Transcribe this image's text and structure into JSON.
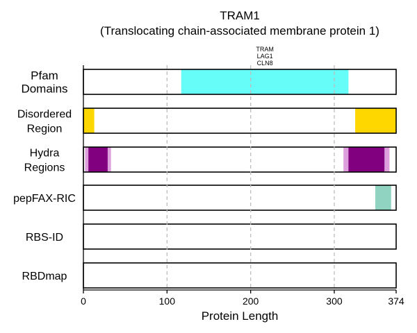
{
  "chart_data": {
    "type": "bar",
    "title": "TRAM1",
    "subtitle": "(Translocating chain-associated membrane protein 1)",
    "xlabel": "Protein Length",
    "protein_length": 374,
    "xlim": [
      0,
      374
    ],
    "x_ticks": [
      0,
      100,
      200,
      300,
      374
    ],
    "grid_lines": [
      100,
      200,
      300
    ],
    "rows": [
      {
        "label": "Pfam\nDomains",
        "segments": [
          {
            "start": 117,
            "end": 317,
            "color": "#66fcf8",
            "annotation": "TRAM\nLAG1\nCLN8"
          }
        ]
      },
      {
        "label": "Disordered\nRegion",
        "segments": [
          {
            "start": 0,
            "end": 13,
            "color": "#ffd700"
          },
          {
            "start": 325,
            "end": 374,
            "color": "#ffd700"
          }
        ]
      },
      {
        "label": "Hydra\nRegions",
        "segments": [
          {
            "start": 2,
            "end": 33,
            "color": "#dda0dd"
          },
          {
            "start": 6,
            "end": 29,
            "color": "#800080"
          },
          {
            "start": 311,
            "end": 366,
            "color": "#dda0dd"
          },
          {
            "start": 317,
            "end": 360,
            "color": "#800080"
          }
        ]
      },
      {
        "label": "pepFAX-RIC",
        "segments": [
          {
            "start": 349,
            "end": 368,
            "color": "#8fd3c0"
          }
        ]
      },
      {
        "label": "RBS-ID",
        "segments": []
      },
      {
        "label": "RBDmap",
        "segments": []
      }
    ]
  }
}
